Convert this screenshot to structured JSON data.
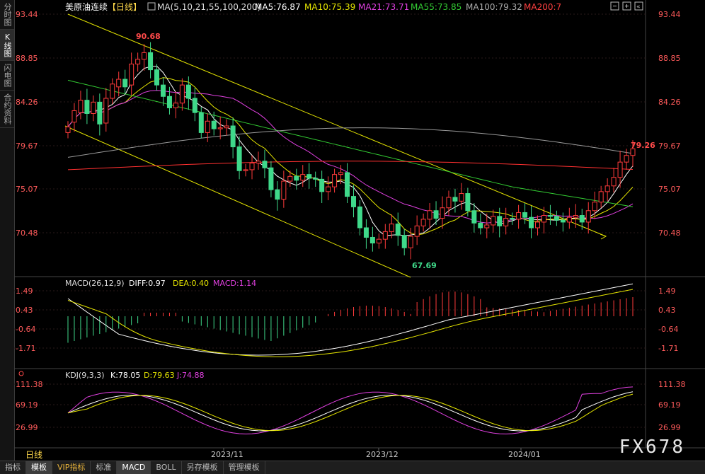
{
  "sidebar": {
    "tabs": [
      {
        "label": "分时图",
        "active": false
      },
      {
        "label": "K线图",
        "active": true
      },
      {
        "label": "闪电图",
        "active": false
      },
      {
        "label": "合约资料",
        "active": false
      }
    ]
  },
  "main_header": {
    "symbol": "美原油连续",
    "period": "【日线】",
    "ma_title": "MA(5,10,21,55,100,200)",
    "ma_values": [
      {
        "label": "MA5:76.87",
        "color": "#ffffff"
      },
      {
        "label": "MA10:75.39",
        "color": "#e6e600"
      },
      {
        "label": "MA21:73.71",
        "color": "#e040e0"
      },
      {
        "label": "MA55:73.85",
        "color": "#33cc33"
      },
      {
        "label": "MA100:79.32",
        "color": "#aaaaaa"
      },
      {
        "label": "MA200:7",
        "color": "#ff4040"
      }
    ]
  },
  "price_axis": {
    "ticks": [
      "93.44",
      "88.85",
      "84.26",
      "79.67",
      "75.07",
      "70.48"
    ]
  },
  "annotations": {
    "high": "90.68",
    "low": "67.69",
    "last": "79.26"
  },
  "macd": {
    "title": "MACD(26,12,9)",
    "diff": "DIFF:0.97",
    "dea": "DEA:0.40",
    "macd": "MACD:1.14",
    "ticks": [
      "1.49",
      "0.43",
      "-0.64",
      "-1.71"
    ]
  },
  "kdj": {
    "title": "KDJ(9,3,3)",
    "k": "K:78.05",
    "d": "D:79.63",
    "j": "J:74.88",
    "ticks": [
      "111.38",
      "69.19",
      "26.99"
    ]
  },
  "time_axis": {
    "period_label": "日线",
    "labels": [
      "2023/11",
      "2023/12",
      "2024/01"
    ]
  },
  "bottom_tabs": [
    {
      "label": "指标",
      "active": false,
      "vip": false
    },
    {
      "label": "模板",
      "active": true,
      "vip": false
    },
    {
      "label": "VIP指标",
      "active": false,
      "vip": true
    },
    {
      "label": "标准",
      "active": false,
      "vip": false
    },
    {
      "label": "MACD",
      "active": true,
      "vip": false
    },
    {
      "label": "BOLL",
      "active": false,
      "vip": false
    },
    {
      "label": "另存模板",
      "active": false,
      "vip": false
    },
    {
      "label": "管理模板",
      "active": false,
      "vip": false
    }
  ],
  "watermark": "FX678",
  "colors": {
    "up": "#ff3b3b",
    "down": "#3fd98a",
    "ma5": "#ffffff",
    "ma10": "#e6e600",
    "ma21": "#e040e0",
    "ma55": "#33cc33",
    "ma100": "#9a9a9a",
    "ma200": "#ff3030",
    "trend": "#e6e600"
  },
  "chart_data": {
    "type": "candlestick",
    "price_range": [
      67.0,
      94.5
    ],
    "closes": [
      81.6,
      83.3,
      84.4,
      83.0,
      84.2,
      81.9,
      84.6,
      86.1,
      86.6,
      85.8,
      88.2,
      88.7,
      89.4,
      87.6,
      86.0,
      84.8,
      83.6,
      84.1,
      86.0,
      84.6,
      83.1,
      81.0,
      82.2,
      81.4,
      81.5,
      81.7,
      79.5,
      77.0,
      77.1,
      77.8,
      78.0,
      77.3,
      75.0,
      74.0,
      75.9,
      76.4,
      76.0,
      76.6,
      76.2,
      76.1,
      74.8,
      75.3,
      76.6,
      76.8,
      74.3,
      73.2,
      71.0,
      70.0,
      69.4,
      69.8,
      70.6,
      71.4,
      70.2,
      68.9,
      70.1,
      71.2,
      71.9,
      72.8,
      72.0,
      73.1,
      74.2,
      73.8,
      74.6,
      72.8,
      71.5,
      71.0,
      71.3,
      72.2,
      71.2,
      72.0,
      71.9,
      72.6,
      72.1,
      71.0,
      71.6,
      72.3,
      72.2,
      71.8,
      71.6,
      72.1,
      72.3,
      71.6,
      72.8,
      73.7,
      74.8,
      75.4,
      76.3,
      77.9,
      78.6,
      79.3
    ],
    "opens": [
      81.0,
      82.1,
      83.1,
      84.4,
      83.0,
      84.2,
      82.0,
      84.6,
      85.8,
      86.6,
      86.0,
      88.2,
      88.7,
      89.4,
      87.6,
      86.0,
      84.8,
      83.6,
      84.1,
      86.0,
      84.6,
      83.1,
      81.0,
      82.2,
      81.4,
      81.5,
      81.7,
      79.5,
      77.0,
      77.1,
      77.8,
      78.0,
      77.3,
      75.0,
      74.0,
      75.9,
      76.4,
      76.0,
      76.6,
      76.2,
      76.1,
      74.8,
      75.3,
      76.6,
      76.8,
      74.3,
      73.2,
      71.0,
      70.0,
      69.4,
      69.8,
      70.6,
      71.4,
      70.2,
      68.9,
      70.1,
      71.2,
      71.9,
      72.8,
      72.0,
      73.1,
      74.2,
      73.8,
      74.6,
      72.8,
      71.5,
      71.0,
      71.3,
      72.2,
      71.2,
      72.0,
      71.9,
      72.6,
      72.1,
      71.0,
      71.6,
      72.3,
      72.2,
      71.8,
      71.6,
      72.1,
      72.3,
      71.6,
      72.8,
      73.7,
      74.8,
      75.4,
      76.3,
      77.9,
      78.6
    ]
  }
}
